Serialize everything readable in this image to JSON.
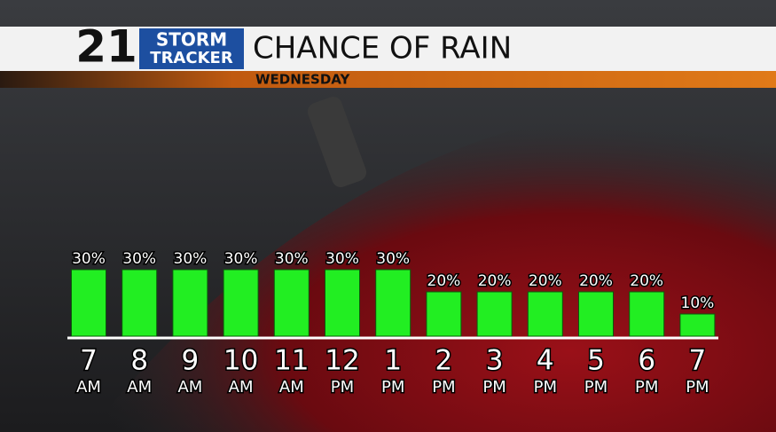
{
  "logo": {
    "number": "21",
    "line1": "STORM",
    "line2": "TRACKER"
  },
  "chart_data": {
    "type": "bar",
    "title": "CHANCE OF RAIN",
    "subtitle": "WEDNESDAY",
    "categories": [
      [
        "7",
        "AM"
      ],
      [
        "8",
        "AM"
      ],
      [
        "9",
        "AM"
      ],
      [
        "10",
        "AM"
      ],
      [
        "11",
        "AM"
      ],
      [
        "12",
        "PM"
      ],
      [
        "1",
        "PM"
      ],
      [
        "2",
        "PM"
      ],
      [
        "3",
        "PM"
      ],
      [
        "4",
        "PM"
      ],
      [
        "5",
        "PM"
      ],
      [
        "6",
        "PM"
      ],
      [
        "7",
        "PM"
      ]
    ],
    "values": [
      30,
      30,
      30,
      30,
      30,
      30,
      30,
      20,
      20,
      20,
      20,
      20,
      10
    ],
    "value_labels": [
      "30%",
      "30%",
      "30%",
      "30%",
      "30%",
      "30%",
      "30%",
      "20%",
      "20%",
      "20%",
      "20%",
      "20%",
      "10%"
    ],
    "color": "#22ee22"
  }
}
